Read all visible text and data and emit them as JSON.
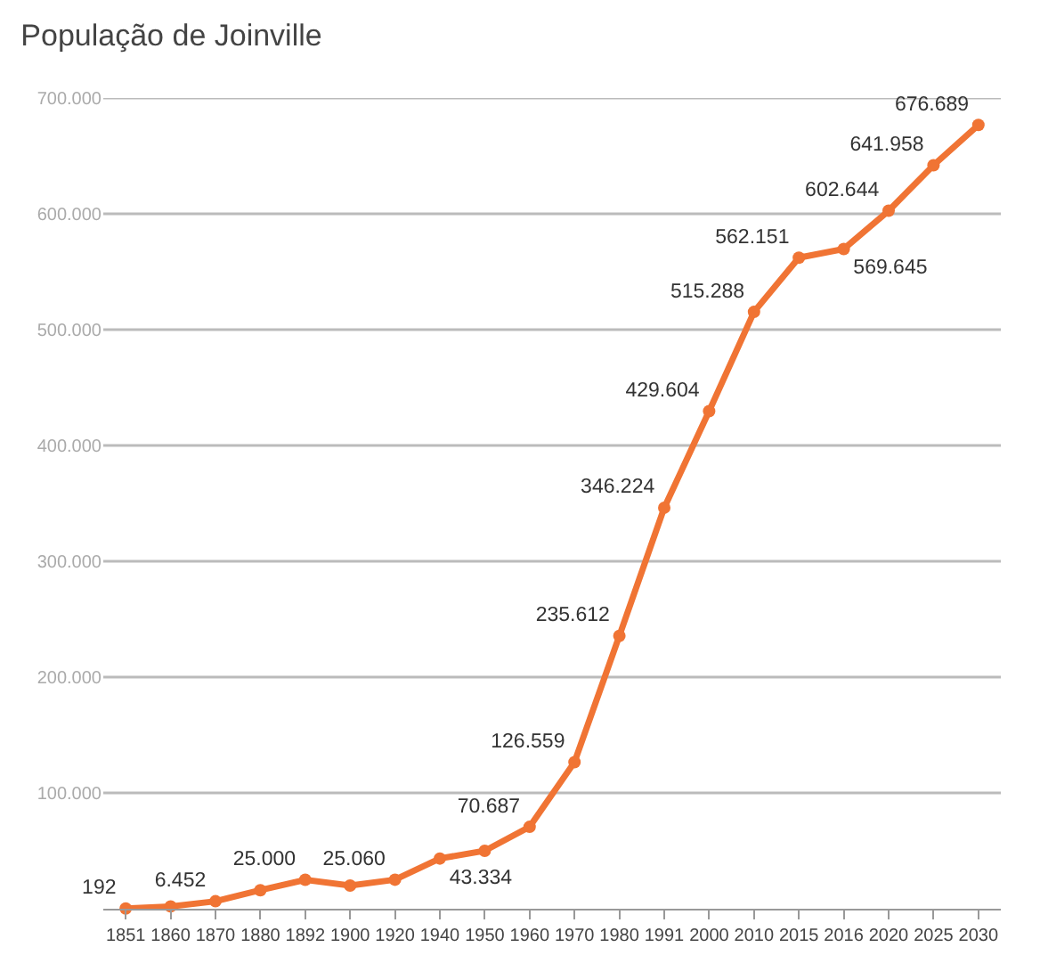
{
  "chart_data": {
    "type": "line",
    "title": "População de Joinville",
    "categories": [
      "1851",
      "1860",
      "1870",
      "1880",
      "1892",
      "1900",
      "1920",
      "1940",
      "1950",
      "1960",
      "1970",
      "1980",
      "1991",
      "2000",
      "2010",
      "2015",
      "2016",
      "2020",
      "2025",
      "2030"
    ],
    "values": [
      192,
      2000,
      6452,
      16000,
      25000,
      20000,
      25060,
      43334,
      50000,
      70687,
      126559,
      235612,
      346224,
      429604,
      515288,
      562151,
      569645,
      602644,
      641958,
      676689
    ],
    "value_labels": [
      "192",
      null,
      "6.452",
      null,
      "25.000",
      null,
      "25.060",
      "43.334",
      null,
      "70.687",
      "126.559",
      "235.612",
      "346.224",
      "429.604",
      "515.288",
      "562.151",
      "569.645",
      "602.644",
      "641.958",
      "676.689"
    ],
    "color": "#f07434",
    "ylim": [
      0,
      700000
    ],
    "yticks": [
      {
        "value": 100000,
        "label": "100.000"
      },
      {
        "value": 200000,
        "label": "200.000"
      },
      {
        "value": 300000,
        "label": "300.000"
      },
      {
        "value": 400000,
        "label": "400.000"
      },
      {
        "value": 500000,
        "label": "500.000"
      },
      {
        "value": 600000,
        "label": "600.000"
      },
      {
        "value": 700000,
        "label": "700.000"
      }
    ],
    "grid": "y",
    "marker": "circle",
    "line_style": "solid"
  }
}
